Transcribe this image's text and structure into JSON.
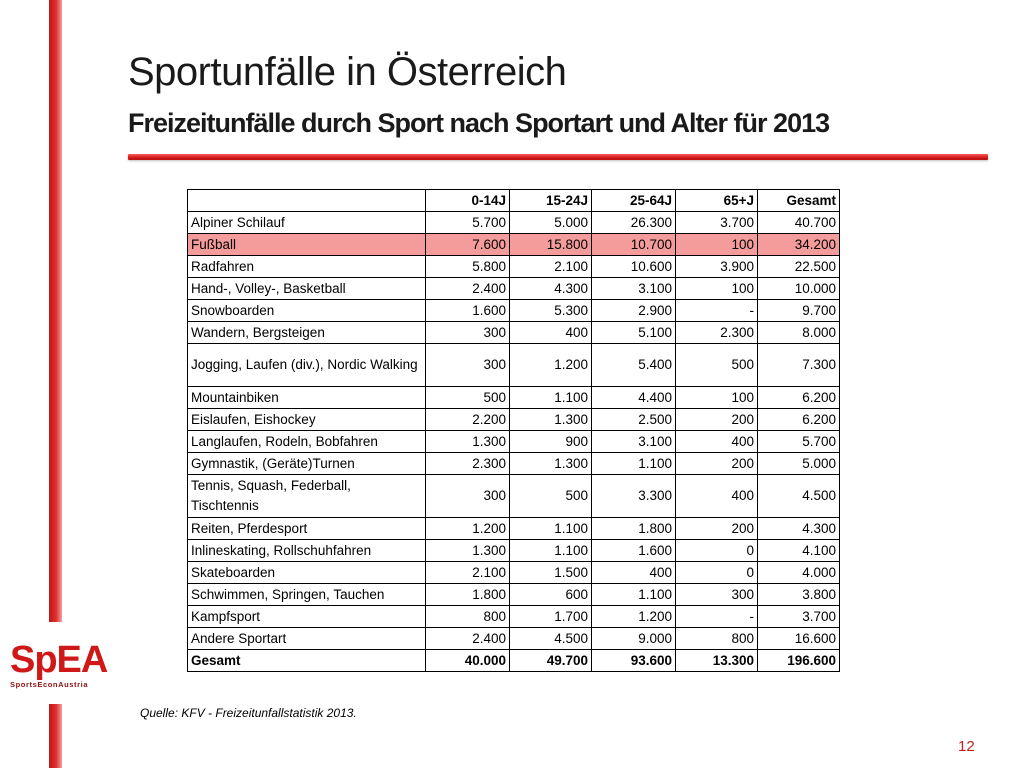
{
  "slide": {
    "title": "Sportunfälle in Österreich",
    "subtitle": "Freizeitunfälle durch Sport nach Sportart und Alter für 2013",
    "source": "Quelle: KFV - Freizeitunfallstatistik 2013.",
    "page_number": "12",
    "accent_color": "#d01818",
    "highlight_color": "#f49b9b"
  },
  "logo": {
    "text": "SpEA",
    "subtext": "SportsEconAustria"
  },
  "table": {
    "headers": [
      "",
      "0-14J",
      "15-24J",
      "25-64J",
      "65+J",
      "Gesamt"
    ],
    "rows": [
      {
        "label": "Alpiner Schilauf",
        "v0": "5.700",
        "v1": "5.000",
        "v2": "26.300",
        "v3": "3.700",
        "total": "40.700"
      },
      {
        "label": "Fußball",
        "v0": "7.600",
        "v1": "15.800",
        "v2": "10.700",
        "v3": "100",
        "total": "34.200"
      },
      {
        "label": "Radfahren",
        "v0": "5.800",
        "v1": "2.100",
        "v2": "10.600",
        "v3": "3.900",
        "total": "22.500"
      },
      {
        "label": "Hand-, Volley-, Basketball",
        "v0": "2.400",
        "v1": "4.300",
        "v2": "3.100",
        "v3": "100",
        "total": "10.000"
      },
      {
        "label": "Snowboarden",
        "v0": "1.600",
        "v1": "5.300",
        "v2": "2.900",
        "v3": "-",
        "total": "9.700"
      },
      {
        "label": "Wandern, Bergsteigen",
        "v0": "300",
        "v1": "400",
        "v2": "5.100",
        "v3": "2.300",
        "total": "8.000"
      },
      {
        "label": "Jogging, Laufen (div.), Nordic Walking",
        "v0": "300",
        "v1": "1.200",
        "v2": "5.400",
        "v3": "500",
        "total": "7.300"
      },
      {
        "label": "Mountainbiken",
        "v0": "500",
        "v1": "1.100",
        "v2": "4.400",
        "v3": "100",
        "total": "6.200"
      },
      {
        "label": "Eislaufen, Eishockey",
        "v0": "2.200",
        "v1": "1.300",
        "v2": "2.500",
        "v3": "200",
        "total": "6.200"
      },
      {
        "label": "Langlaufen, Rodeln, Bobfahren",
        "v0": "1.300",
        "v1": "900",
        "v2": "3.100",
        "v3": "400",
        "total": "5.700"
      },
      {
        "label": "Gymnastik, (Geräte)Turnen",
        "v0": "2.300",
        "v1": "1.300",
        "v2": "1.100",
        "v3": "200",
        "total": "5.000"
      },
      {
        "label": "Tennis, Squash, Federball, Tischtennis",
        "v0": "300",
        "v1": "500",
        "v2": "3.300",
        "v3": "400",
        "total": "4.500"
      },
      {
        "label": "Reiten, Pferdesport",
        "v0": "1.200",
        "v1": "1.100",
        "v2": "1.800",
        "v3": "200",
        "total": "4.300"
      },
      {
        "label": "Inlineskating, Rollschuhfahren",
        "v0": "1.300",
        "v1": "1.100",
        "v2": "1.600",
        "v3": "0",
        "total": "4.100"
      },
      {
        "label": "Skateboarden",
        "v0": "2.100",
        "v1": "1.500",
        "v2": "400",
        "v3": "0",
        "total": "4.000"
      },
      {
        "label": "Schwimmen, Springen, Tauchen",
        "v0": "1.800",
        "v1": "600",
        "v2": "1.100",
        "v3": "300",
        "total": "3.800"
      },
      {
        "label": "Kampfsport",
        "v0": "800",
        "v1": "1.700",
        "v2": "1.200",
        "v3": "-",
        "total": "3.700"
      },
      {
        "label": "Andere Sportart",
        "v0": "2.400",
        "v1": "4.500",
        "v2": "9.000",
        "v3": "800",
        "total": "16.600"
      }
    ],
    "total_row": {
      "label": "Gesamt",
      "v0": "40.000",
      "v1": "49.700",
      "v2": "93.600",
      "v3": "13.300",
      "total": "196.600"
    }
  }
}
